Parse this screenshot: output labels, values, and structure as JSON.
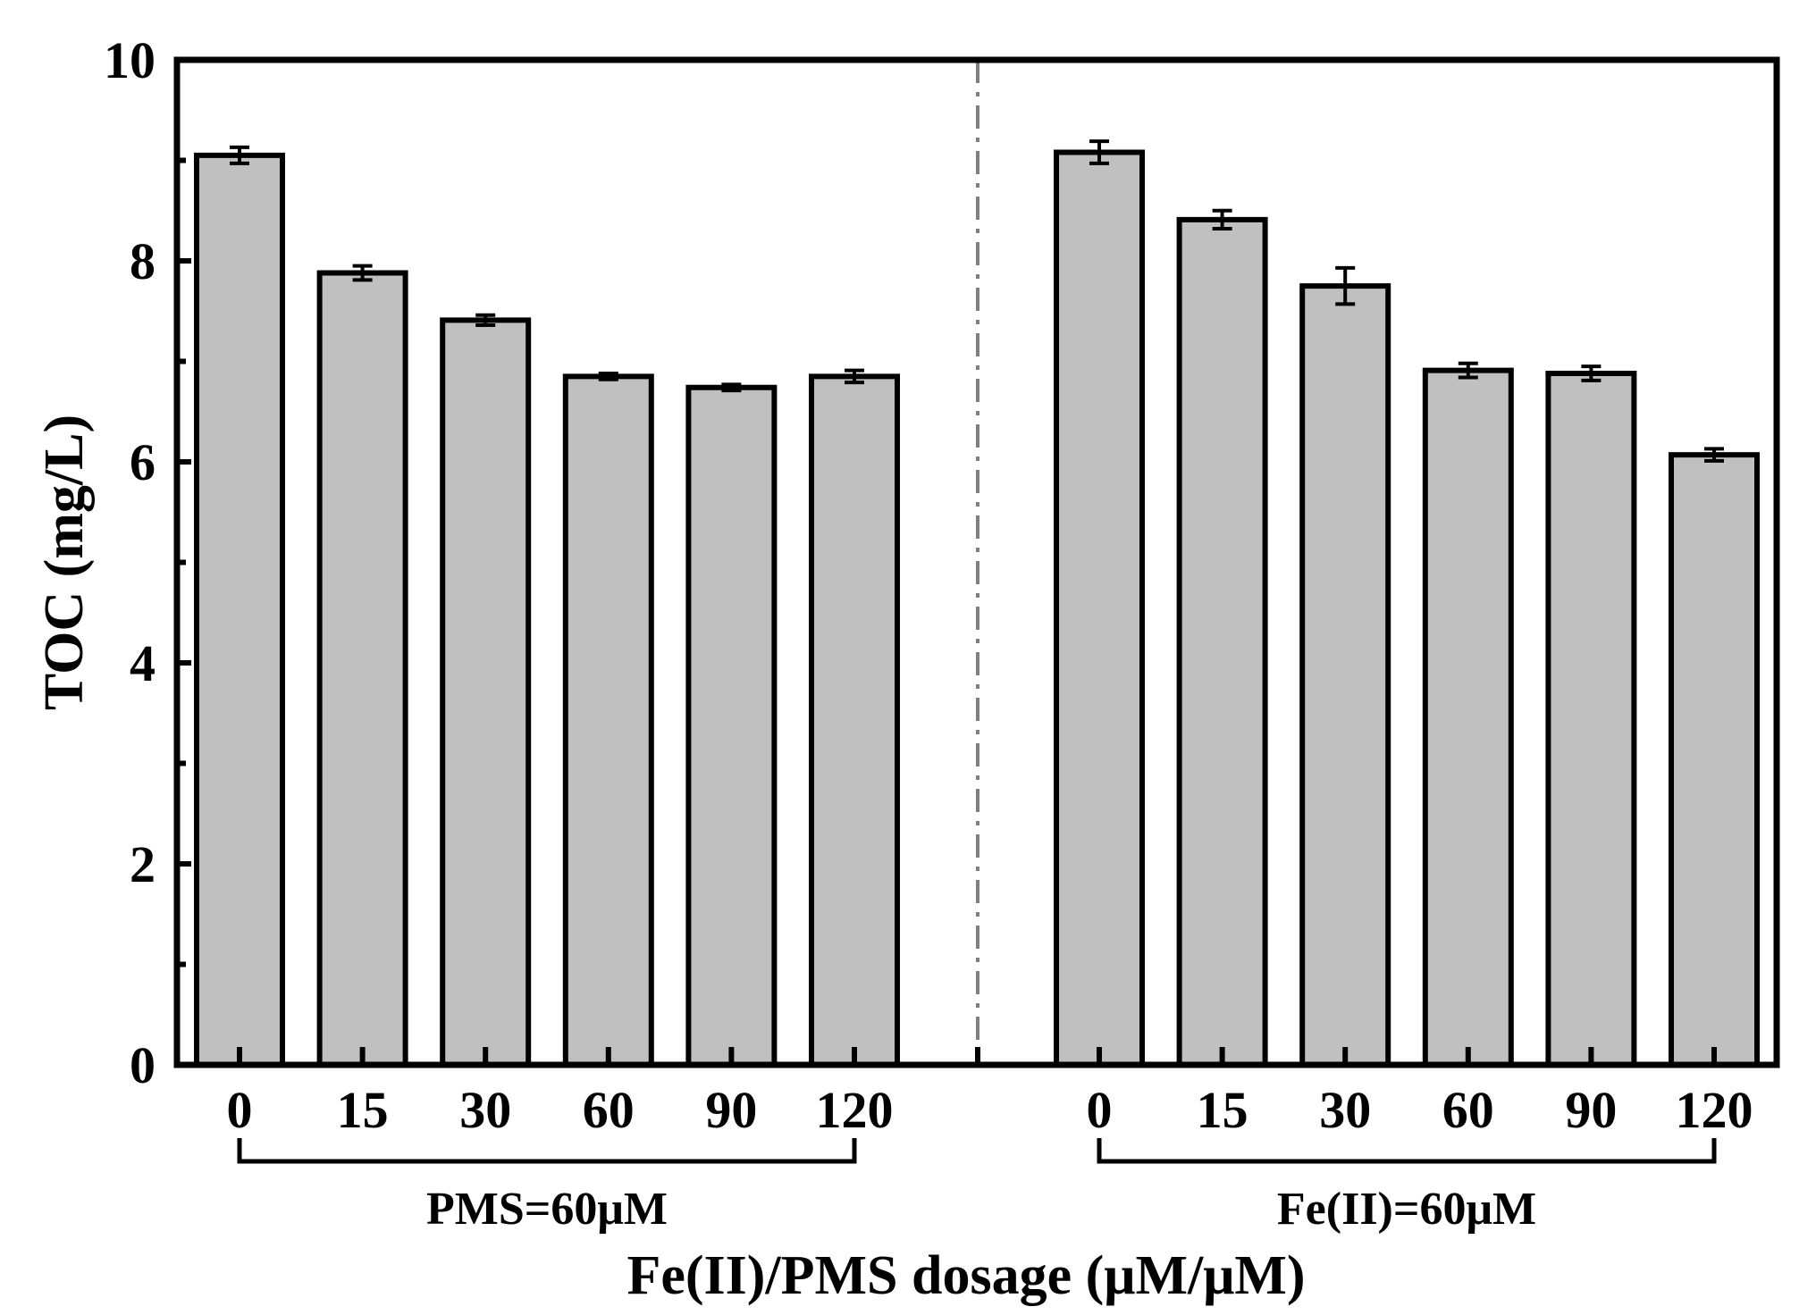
{
  "chart_data": {
    "type": "bar",
    "ylabel": "TOC (mg/L)",
    "xlabel": "Fe(II)/PMS dosage (μM/μM)",
    "ylim": [
      0,
      10
    ],
    "yticks": [
      "0",
      "2",
      "4",
      "6",
      "8",
      "10"
    ],
    "grid": false,
    "bar_color": "#c0c0c0",
    "edge_color": "#000000",
    "separator": "dash-dot vertical line between groups",
    "separator_color": "#808080",
    "groups": [
      {
        "label": "PMS=60μM",
        "categories": [
          "0",
          "15",
          "30",
          "60",
          "90",
          "120"
        ],
        "values": [
          9.05,
          7.88,
          7.41,
          6.85,
          6.74,
          6.85
        ],
        "errors": [
          0.08,
          0.07,
          0.05,
          0.03,
          0.03,
          0.06
        ]
      },
      {
        "label": "Fe(II)=60μM",
        "categories": [
          "0",
          "15",
          "30",
          "60",
          "90",
          "120"
        ],
        "values": [
          9.08,
          8.41,
          7.75,
          6.91,
          6.88,
          6.07
        ],
        "errors": [
          0.11,
          0.09,
          0.18,
          0.07,
          0.07,
          0.06
        ]
      }
    ]
  }
}
